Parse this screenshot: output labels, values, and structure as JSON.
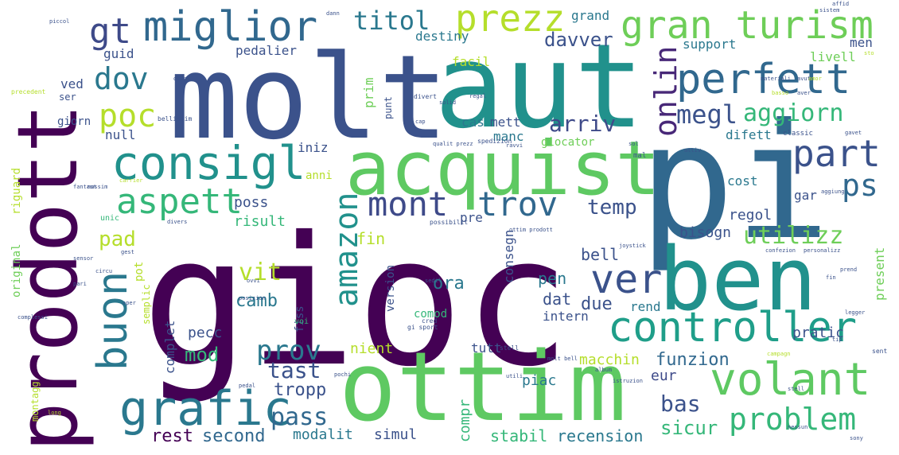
{
  "cloud": {
    "words": [
      {
        "text": "gioc",
        "color": "#440154"
      },
      {
        "text": "pi",
        "color": "#31688e"
      },
      {
        "text": "molt",
        "color": "#3b528b"
      },
      {
        "text": "aut",
        "color": "#21918c"
      },
      {
        "text": "prodott",
        "color": "#440154"
      },
      {
        "text": "ben",
        "color": "#21918c"
      },
      {
        "text": "ottim",
        "color": "#5ec962"
      },
      {
        "text": "acquist",
        "color": "#5ec962"
      },
      {
        "text": "volant",
        "color": "#5ec962"
      },
      {
        "text": "controller",
        "color": "#1f9e89"
      },
      {
        "text": "consigl",
        "color": "#21918c"
      },
      {
        "text": "grafic",
        "color": "#2a788e"
      },
      {
        "text": "gran turism",
        "color": "#6ece58"
      },
      {
        "text": "miglior",
        "color": "#31688e"
      },
      {
        "text": "perfett",
        "color": "#31688e"
      },
      {
        "text": "ver",
        "color": "#3b528b"
      },
      {
        "text": "buon",
        "color": "#2a788e"
      },
      {
        "text": "prezz",
        "color": "#b5de2b"
      },
      {
        "text": "part",
        "color": "#3b528b"
      },
      {
        "text": "aspett",
        "color": "#35b779"
      },
      {
        "text": "mont",
        "color": "#3e4a89"
      },
      {
        "text": "trov",
        "color": "#31688e"
      },
      {
        "text": "problem",
        "color": "#35b779"
      },
      {
        "text": "prov",
        "color": "#2a788e"
      },
      {
        "text": "gt",
        "color": "#3e4a89"
      },
      {
        "text": "amazon",
        "color": "#21918c"
      },
      {
        "text": "onlin",
        "color": "#482878"
      },
      {
        "text": "poc",
        "color": "#b5de2b"
      },
      {
        "text": "dov",
        "color": "#2a788e"
      },
      {
        "text": "ps",
        "color": "#31688e"
      },
      {
        "text": "titol",
        "color": "#2a788e"
      },
      {
        "text": "megl",
        "color": "#3b528b"
      },
      {
        "text": "aggiorn",
        "color": "#35b779"
      },
      {
        "text": "utilizz",
        "color": "#6ece58"
      },
      {
        "text": "pass",
        "color": "#31688e"
      },
      {
        "text": "tast",
        "color": "#3b528b"
      },
      {
        "text": "arriv",
        "color": "#3e4a89"
      },
      {
        "text": "temp",
        "color": "#3b528b"
      },
      {
        "text": "vit",
        "color": "#b5de2b"
      },
      {
        "text": "pad",
        "color": "#b5de2b"
      },
      {
        "text": "bas",
        "color": "#3b528b"
      },
      {
        "text": "davver",
        "color": "#3b528b"
      },
      {
        "text": "fin",
        "color": "#b5de2b"
      },
      {
        "text": "funzion",
        "color": "#31688e"
      },
      {
        "text": "tropp",
        "color": "#3b528b"
      },
      {
        "text": "mod",
        "color": "#35b779"
      },
      {
        "text": "second",
        "color": "#31688e"
      },
      {
        "text": "rest",
        "color": "#440154"
      },
      {
        "text": "modalit",
        "color": "#2a788e"
      },
      {
        "text": "stabil",
        "color": "#35b779"
      },
      {
        "text": "recension",
        "color": "#2a788e"
      },
      {
        "text": "sicur",
        "color": "#35b779"
      },
      {
        "text": "ora",
        "color": "#2a788e"
      },
      {
        "text": "camb",
        "color": "#2a788e"
      },
      {
        "text": "due",
        "color": "#3b528b"
      },
      {
        "text": "pen",
        "color": "#2a788e"
      },
      {
        "text": "dat",
        "color": "#3b528b"
      },
      {
        "text": "bell",
        "color": "#3b528b"
      },
      {
        "text": "poss",
        "color": "#3b528b"
      },
      {
        "text": "risult",
        "color": "#35b779"
      },
      {
        "text": "regol",
        "color": "#3b528b"
      },
      {
        "text": "bisogn",
        "color": "#3b528b"
      },
      {
        "text": "macchin",
        "color": "#b5de2b"
      },
      {
        "text": "pratic",
        "color": "#3b528b"
      },
      {
        "text": "eur",
        "color": "#3e4a89"
      },
      {
        "text": "piac",
        "color": "#2a788e"
      },
      {
        "text": "compr",
        "color": "#35b779"
      },
      {
        "text": "simul",
        "color": "#3b528b"
      },
      {
        "text": "pecc",
        "color": "#3b528b"
      },
      {
        "text": "nient",
        "color": "#b5de2b"
      },
      {
        "text": "tutt",
        "color": "#3b528b"
      },
      {
        "text": "intern",
        "color": "#3b528b"
      },
      {
        "text": "rend",
        "color": "#2a788e"
      },
      {
        "text": "present",
        "color": "#6ece58"
      },
      {
        "text": "complet",
        "color": "#3b528b"
      },
      {
        "text": "grand",
        "color": "#2a788e"
      },
      {
        "text": "guid",
        "color": "#3b528b"
      },
      {
        "text": "support",
        "color": "#2a788e"
      },
      {
        "text": "livell",
        "color": "#6ece58"
      },
      {
        "text": "men",
        "color": "#3b528b"
      },
      {
        "text": "prim",
        "color": "#6ece58"
      },
      {
        "text": "pedalier",
        "color": "#3b528b"
      },
      {
        "text": "destiny",
        "color": "#2a788e"
      },
      {
        "text": "facil",
        "color": "#b5de2b"
      },
      {
        "text": "ved",
        "color": "#3b528b"
      },
      {
        "text": "null",
        "color": "#3b528b"
      },
      {
        "text": "cas",
        "color": "#2a788e"
      },
      {
        "text": "mett",
        "color": "#3b528b"
      },
      {
        "text": "manc",
        "color": "#2a788e"
      },
      {
        "text": "difett",
        "color": "#2a788e"
      },
      {
        "text": "giocator",
        "color": "#6ece58"
      },
      {
        "text": "iniz",
        "color": "#3b528b"
      },
      {
        "text": "gar",
        "color": "#3b528b"
      },
      {
        "text": "cost",
        "color": "#2a788e"
      },
      {
        "text": "anni",
        "color": "#b5de2b"
      },
      {
        "text": "pre",
        "color": "#3b528b"
      },
      {
        "text": "consegn",
        "color": "#3b528b"
      },
      {
        "text": "comod",
        "color": "#35b779"
      },
      {
        "text": "version",
        "color": "#3b528b"
      },
      {
        "text": "fiss",
        "color": "#3b528b"
      },
      {
        "text": "pot",
        "color": "#b5de2b"
      },
      {
        "text": "original",
        "color": "#6ece58"
      },
      {
        "text": "semplic",
        "color": "#b5de2b"
      },
      {
        "text": "riguard",
        "color": "#b5de2b"
      },
      {
        "text": "giorn",
        "color": "#3b528b"
      },
      {
        "text": "ser",
        "color": "#3b528b"
      },
      {
        "text": "punt",
        "color": "#3b528b"
      },
      {
        "text": "montagg",
        "color": "#b5de2b"
      },
      {
        "text": "voi",
        "color": "#35b779"
      },
      {
        "text": "unic",
        "color": "#35b779"
      },
      {
        "text": "gi sport",
        "color": "#3b528b"
      },
      {
        "text": "spedizion",
        "color": "#3b528b"
      },
      {
        "text": "classic",
        "color": "#3b528b"
      },
      {
        "text": "mal",
        "color": "#3b528b"
      },
      {
        "text": "possibilit",
        "color": "#3b528b"
      },
      {
        "text": "ottim prodott",
        "color": "#3b528b"
      },
      {
        "text": "joystick",
        "color": "#3b528b"
      },
      {
        "text": "personalizz",
        "color": "#3b528b"
      },
      {
        "text": "confezion",
        "color": "#3b528b"
      },
      {
        "text": "bellissim",
        "color": "#3b528b"
      },
      {
        "text": "precedent",
        "color": "#b5de2b"
      },
      {
        "text": "divert",
        "color": "#3b528b"
      },
      {
        "text": "regal",
        "color": "#3b528b"
      },
      {
        "text": "solid",
        "color": "#3b528b"
      },
      {
        "text": "cap",
        "color": "#3b528b"
      },
      {
        "text": "qualit prezz",
        "color": "#3b528b"
      },
      {
        "text": "ravvi",
        "color": "#3b528b"
      },
      {
        "text": "sol",
        "color": "#3b528b"
      },
      {
        "text": "aggiung",
        "color": "#3b528b"
      },
      {
        "text": "stell",
        "color": "#3b528b"
      },
      {
        "text": "molt bell",
        "color": "#3b528b"
      },
      {
        "text": "album",
        "color": "#3b528b"
      },
      {
        "text": "istruzion",
        "color": "#3b528b"
      },
      {
        "text": "posizion",
        "color": "#3b528b"
      },
      {
        "text": "cred",
        "color": "#3b528b"
      },
      {
        "text": "sedil",
        "color": "#3b528b"
      },
      {
        "text": "complessi",
        "color": "#3b528b"
      },
      {
        "text": "pedal",
        "color": "#3b528b"
      },
      {
        "text": "long",
        "color": "#b5de2b"
      },
      {
        "text": "sent",
        "color": "#3b528b"
      },
      {
        "text": "legger",
        "color": "#3b528b"
      },
      {
        "text": "campagn",
        "color": "#b5de2b"
      },
      {
        "text": "tip",
        "color": "#3b528b"
      },
      {
        "text": "piccol",
        "color": "#3b528b"
      },
      {
        "text": "fantast",
        "color": "#3b528b"
      },
      {
        "text": "carrier",
        "color": "#b5de2b"
      },
      {
        "text": "gest",
        "color": "#3b528b"
      },
      {
        "text": "circu",
        "color": "#3b528b"
      },
      {
        "text": "sensor",
        "color": "#3b528b"
      },
      {
        "text": "pari",
        "color": "#3b528b"
      },
      {
        "text": "oper",
        "color": "#3b528b"
      },
      {
        "text": "ovvi",
        "color": "#3b528b"
      },
      {
        "text": "divers",
        "color": "#3b528b"
      },
      {
        "text": "massim",
        "color": "#3b528b"
      },
      {
        "text": "dann",
        "color": "#3b528b"
      },
      {
        "text": "sistem",
        "color": "#3b528b"
      },
      {
        "text": "affid",
        "color": "#3b528b"
      },
      {
        "text": "basso",
        "color": "#b5de2b"
      },
      {
        "text": "materiali",
        "color": "#3b528b"
      },
      {
        "text": "sto",
        "color": "#b5de2b"
      },
      {
        "text": "avuto",
        "color": "#3b528b"
      },
      {
        "text": "aver",
        "color": "#3b528b"
      },
      {
        "text": "attiv",
        "color": "#3b528b"
      },
      {
        "text": "pochi",
        "color": "#3b528b"
      },
      {
        "text": "stell",
        "color": "#3b528b"
      },
      {
        "text": "sony",
        "color": "#3b528b"
      },
      {
        "text": "nessun",
        "color": "#3b528b"
      },
      {
        "text": "utili",
        "color": "#3b528b"
      },
      {
        "text": "amor",
        "color": "#b5de2b"
      },
      {
        "text": "debol",
        "color": "#3b528b"
      },
      {
        "text": "gavet",
        "color": "#3b528b"
      },
      {
        "text": "prend",
        "color": "#3b528b"
      },
      {
        "text": "fin",
        "color": "#3b528b"
      }
    ]
  }
}
